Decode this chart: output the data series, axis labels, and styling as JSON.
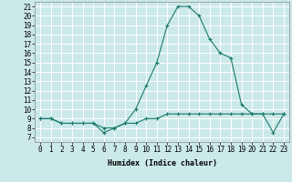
{
  "xlabel": "Humidex (Indice chaleur)",
  "xlim": [
    -0.5,
    23.5
  ],
  "ylim": [
    6.5,
    21.5
  ],
  "yticks": [
    7,
    8,
    9,
    10,
    11,
    12,
    13,
    14,
    15,
    16,
    17,
    18,
    19,
    20,
    21
  ],
  "xticks": [
    0,
    1,
    2,
    3,
    4,
    5,
    6,
    7,
    8,
    9,
    10,
    11,
    12,
    13,
    14,
    15,
    16,
    17,
    18,
    19,
    20,
    21,
    22,
    23
  ],
  "background_color": "#cce9e9",
  "grid_color": "#ffffff",
  "line1_x": [
    0,
    1,
    2,
    3,
    4,
    5,
    6,
    7,
    8,
    9,
    10,
    11,
    12,
    13,
    14,
    15,
    16,
    17,
    18,
    19,
    20,
    21,
    22,
    23
  ],
  "line1_y": [
    9.0,
    9.0,
    8.5,
    8.5,
    8.5,
    8.5,
    7.5,
    8.0,
    8.5,
    10.0,
    12.5,
    15.0,
    19.0,
    21.0,
    21.0,
    20.0,
    17.5,
    16.0,
    15.5,
    10.5,
    9.5,
    9.5,
    7.5,
    9.5
  ],
  "line2_x": [
    0,
    1,
    2,
    3,
    4,
    5,
    6,
    7,
    8,
    9,
    10,
    11,
    12,
    13,
    14,
    15,
    16,
    17,
    18,
    19,
    20,
    21,
    22,
    23
  ],
  "line2_y": [
    9.0,
    9.0,
    8.5,
    8.5,
    8.5,
    8.5,
    8.0,
    8.0,
    8.5,
    8.5,
    9.0,
    9.0,
    9.5,
    9.5,
    9.5,
    9.5,
    9.5,
    9.5,
    9.5,
    9.5,
    9.5,
    9.5,
    9.5,
    9.5
  ],
  "line_color": "#1a7a6e",
  "marker": "+",
  "markersize": 3,
  "linewidth": 0.8,
  "axis_fontsize": 6,
  "tick_fontsize": 5.5
}
